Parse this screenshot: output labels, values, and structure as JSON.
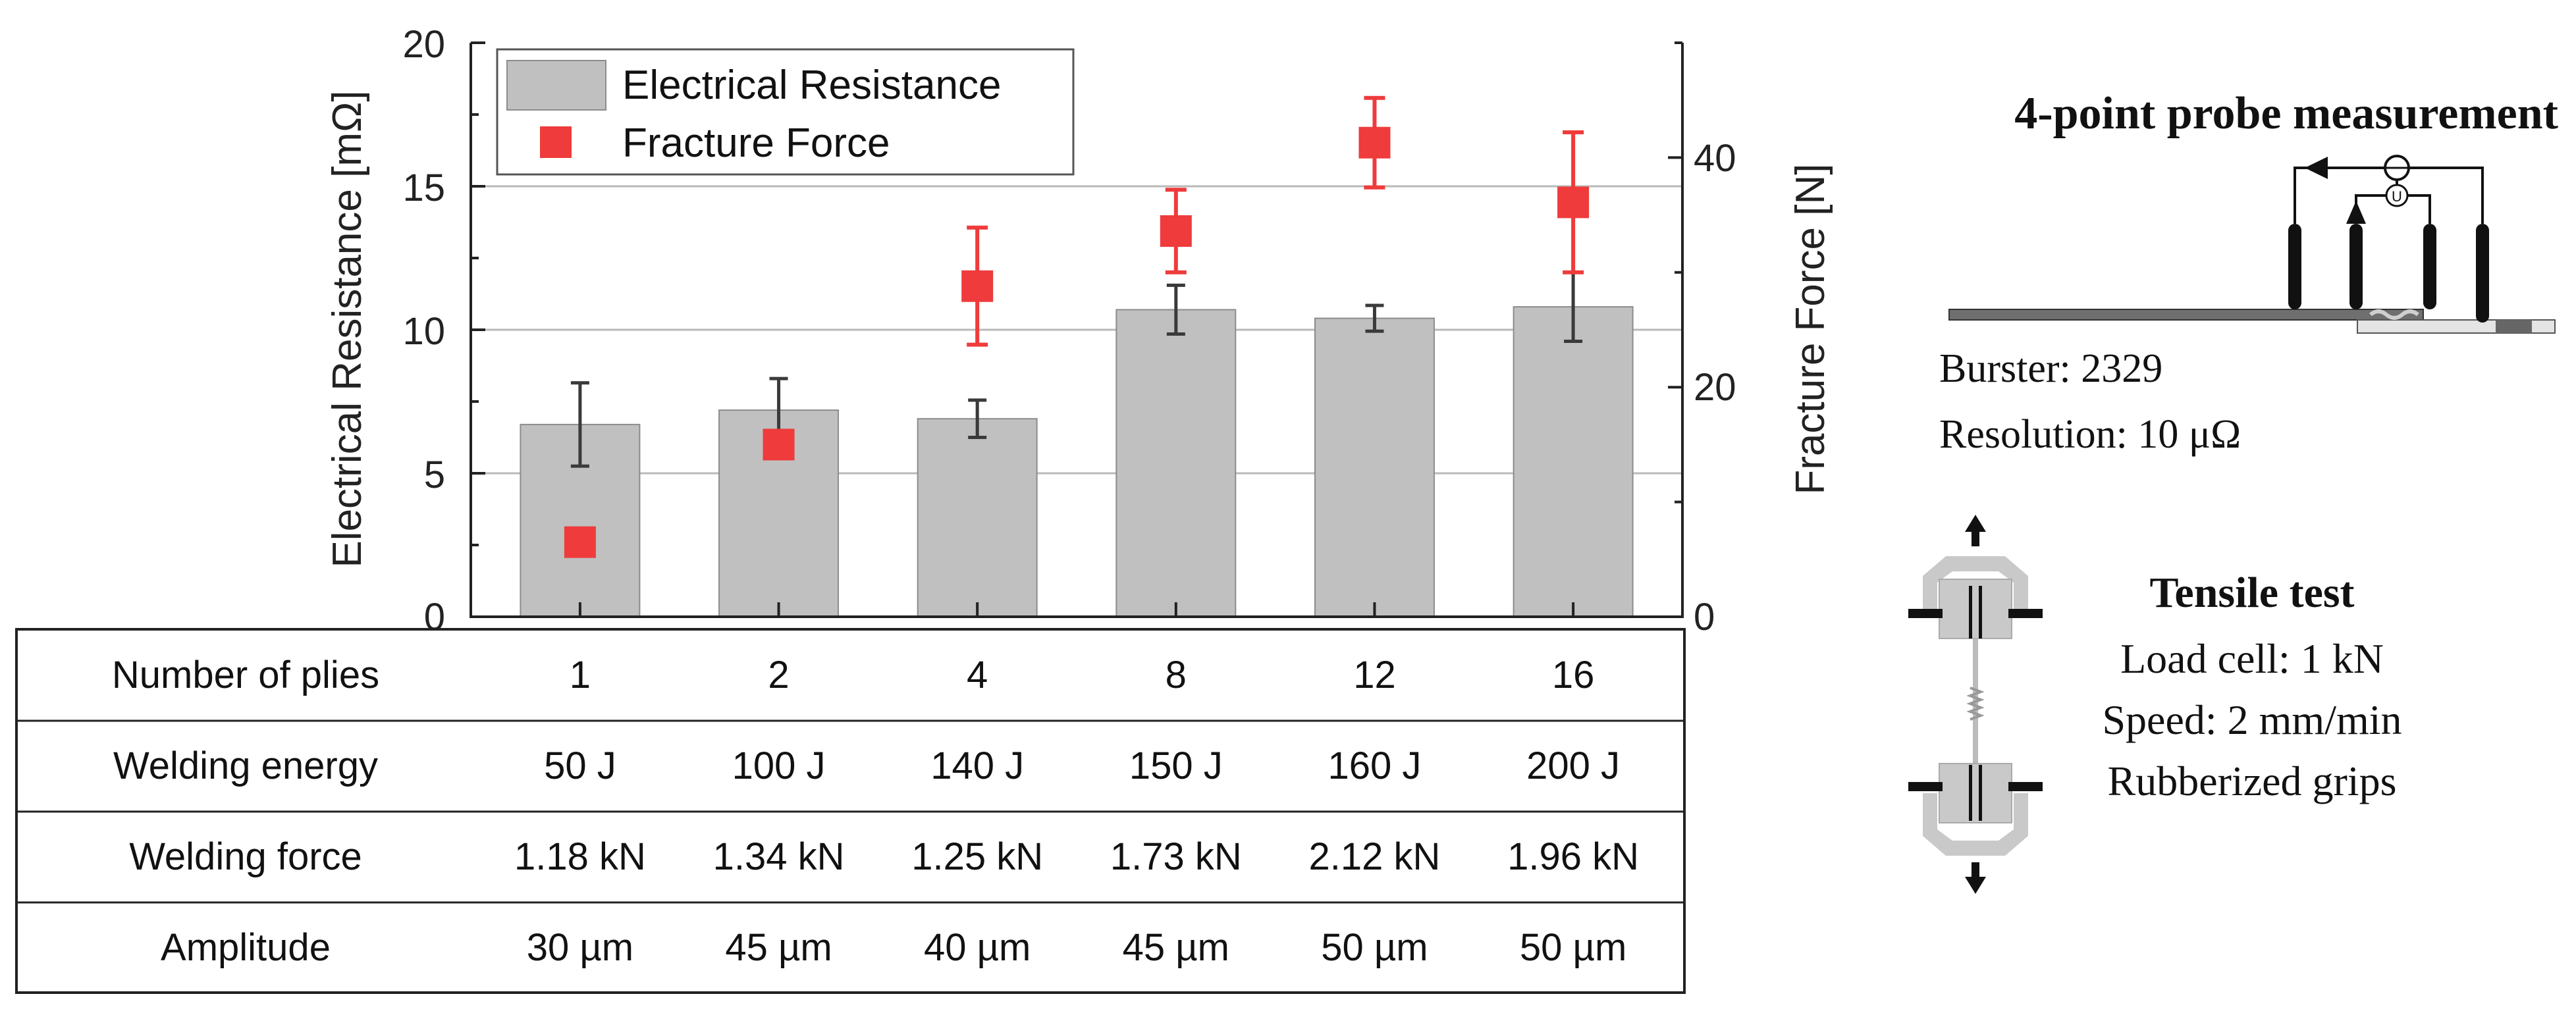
{
  "chart_data": {
    "type": "bar",
    "categories": [
      "1",
      "2",
      "4",
      "8",
      "12",
      "16"
    ],
    "series": [
      {
        "name": "Electrical Resistance",
        "axis": "left",
        "kind": "bar",
        "values": [
          6.7,
          7.2,
          6.9,
          10.7,
          10.4,
          10.8
        ],
        "errors": [
          1.45,
          1.1,
          0.65,
          0.85,
          0.45,
          1.2
        ],
        "color": "#c0c0c0"
      },
      {
        "name": "Fracture Force",
        "axis": "right",
        "kind": "scatter",
        "values": [
          6.5,
          15.0,
          28.8,
          33.6,
          41.3,
          36.1
        ],
        "errors": [
          0.8,
          0.8,
          5.1,
          3.6,
          3.9,
          6.1
        ],
        "color": "#ef3b3b"
      }
    ],
    "ylabel": "Electrical Resistance [mΩ]",
    "ylabel_right": "Fracture Force [N]",
    "ylim": [
      0,
      20
    ],
    "ylim_right": [
      0,
      50
    ],
    "yticks": [
      "0",
      "5",
      "10",
      "15",
      "20"
    ],
    "yticks_right": [
      "0",
      "20",
      "40"
    ],
    "grid": true,
    "legend": [
      "Electrical Resistance",
      "Fracture Force"
    ],
    "legend_position": "top-left"
  },
  "table": {
    "rows": [
      {
        "label": "Number of plies",
        "cells": [
          "1",
          "2",
          "4",
          "8",
          "12",
          "16"
        ]
      },
      {
        "label": "Welding energy",
        "cells": [
          "50 J",
          "100 J",
          "140 J",
          "150 J",
          "160 J",
          "200 J"
        ]
      },
      {
        "label": "Welding force",
        "cells": [
          "1.18 kN",
          "1.34 kN",
          "1.25 kN",
          "1.73 kN",
          "2.12 kN",
          "1.96 kN"
        ]
      },
      {
        "label": "Amplitude",
        "cells": [
          "30 µm",
          "45 µm",
          "40 µm",
          "45 µm",
          "50 µm",
          "50 µm"
        ]
      }
    ]
  },
  "probe": {
    "title": "4-point probe measurement",
    "line1": "Burster: 2329",
    "line2": "Resolution: 10 μΩ",
    "current_symbol": "",
    "voltage_symbol": "U"
  },
  "tensile": {
    "title": "Tensile test",
    "line1": "Load cell: 1 kN",
    "line2": "Speed: 2 mm/min",
    "line3": "Rubberized grips"
  },
  "colors": {
    "bar": "#c0c0c0",
    "marker": "#ef3b3b",
    "error_dark": "#3a3a3a"
  }
}
